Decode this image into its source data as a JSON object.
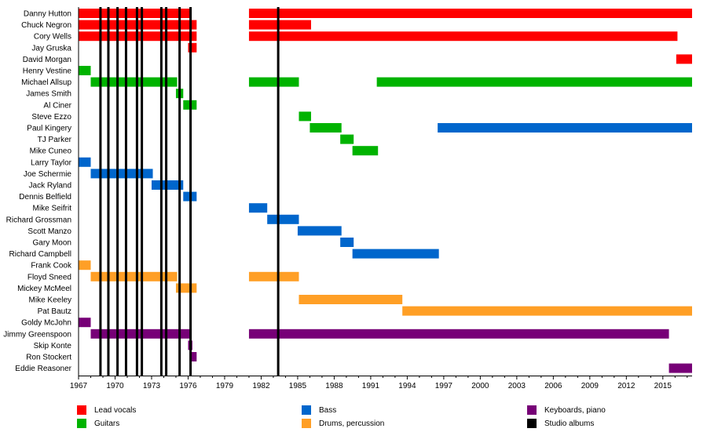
{
  "chart_data": {
    "type": "timeline",
    "title": "",
    "xlabel": "",
    "ylabel": "",
    "xlim": [
      1967,
      2017.4
    ],
    "x_ticks": [
      1967,
      1970,
      1973,
      1976,
      1979,
      1982,
      1985,
      1988,
      1991,
      1994,
      1997,
      2000,
      2003,
      2006,
      2009,
      2012,
      2015
    ],
    "roles": {
      "vocals": {
        "label": "Lead vocals",
        "color": "#ff0000"
      },
      "guitars": {
        "label": "Guitars",
        "color": "#00b300"
      },
      "bass": {
        "label": "Bass",
        "color": "#0066cc"
      },
      "drums": {
        "label": "Drums, percussion",
        "color": "#ff9f26"
      },
      "keyboards": {
        "label": "Keyboards, piano",
        "color": "#770077"
      },
      "albums": {
        "label": "Studio albums",
        "color": "#000000"
      }
    },
    "members": [
      {
        "name": "Danny Hutton",
        "role": "vocals",
        "periods": [
          [
            1967,
            1976.2
          ],
          [
            1981,
            2017.4
          ]
        ]
      },
      {
        "name": "Chuck Negron",
        "role": "vocals",
        "periods": [
          [
            1967,
            1976.7
          ],
          [
            1981,
            1986.1
          ]
        ]
      },
      {
        "name": "Cory Wells",
        "role": "vocals",
        "periods": [
          [
            1967,
            1976.7
          ],
          [
            1981,
            2016.2
          ]
        ]
      },
      {
        "name": "Jay Gruska",
        "role": "vocals",
        "periods": [
          [
            1976.0,
            1976.7
          ]
        ]
      },
      {
        "name": "David Morgan",
        "role": "vocals",
        "periods": [
          [
            2016.1,
            2017.4
          ]
        ]
      },
      {
        "name": "Henry Vestine",
        "role": "guitars",
        "periods": [
          [
            1967,
            1968.0
          ]
        ]
      },
      {
        "name": "Michael Allsup",
        "role": "guitars",
        "periods": [
          [
            1968.0,
            1975.1
          ],
          [
            1981,
            1985.1
          ],
          [
            1991.5,
            2017.4
          ]
        ]
      },
      {
        "name": "James Smith",
        "role": "guitars",
        "periods": [
          [
            1975.0,
            1975.6
          ]
        ]
      },
      {
        "name": "Al Ciner",
        "role": "guitars",
        "periods": [
          [
            1975.6,
            1976.7
          ]
        ]
      },
      {
        "name": "Steve Ezzo",
        "role": "guitars",
        "periods": [
          [
            1985.1,
            1986.1
          ]
        ]
      },
      {
        "name": "Paul Kingery",
        "role": "guitars",
        "periods": [
          [
            1986.0,
            1988.6
          ]
        ]
      },
      {
        "name": "TJ Parker",
        "role": "guitars",
        "periods": [
          [
            1988.5,
            1989.6
          ]
        ]
      },
      {
        "name": "Mike Cuneo",
        "role": "guitars",
        "periods": [
          [
            1989.5,
            1991.6
          ]
        ]
      },
      {
        "name": "Larry Taylor",
        "role": "bass",
        "periods": [
          [
            1967,
            1968.0
          ]
        ]
      },
      {
        "name": "Joe Schermie",
        "role": "bass",
        "periods": [
          [
            1968.0,
            1973.1
          ]
        ]
      },
      {
        "name": "Jack Ryland",
        "role": "bass",
        "periods": [
          [
            1973.0,
            1975.6
          ]
        ]
      },
      {
        "name": "Dennis Belfield",
        "role": "bass",
        "periods": [
          [
            1975.6,
            1976.7
          ]
        ]
      },
      {
        "name": "Mike Seifrit",
        "role": "bass",
        "periods": [
          [
            1981,
            1982.5
          ]
        ]
      },
      {
        "name": "Richard Grossman",
        "role": "bass",
        "periods": [
          [
            1982.5,
            1985.1
          ]
        ]
      },
      {
        "name": "Scott Manzo",
        "role": "bass",
        "periods": [
          [
            1985.0,
            1988.6
          ]
        ]
      },
      {
        "name": "Gary Moon",
        "role": "bass",
        "periods": [
          [
            1988.5,
            1989.6
          ]
        ]
      },
      {
        "name": "Richard Campbell",
        "role": "bass",
        "periods": [
          [
            1989.5,
            1996.6
          ]
        ]
      },
      {
        "name": "Frank Cook",
        "role": "drums",
        "periods": [
          [
            1967,
            1968.0
          ]
        ]
      },
      {
        "name": "Floyd Sneed",
        "role": "drums",
        "periods": [
          [
            1968.0,
            1975.1
          ],
          [
            1981,
            1985.1
          ]
        ]
      },
      {
        "name": "Mickey McMeel",
        "role": "drums",
        "periods": [
          [
            1975.0,
            1976.7
          ]
        ]
      },
      {
        "name": "Mike Keeley",
        "role": "drums",
        "periods": [
          [
            1985.1,
            1993.6
          ]
        ]
      },
      {
        "name": "Pat Bautz",
        "role": "drums",
        "periods": [
          [
            1993.6,
            2017.4
          ]
        ]
      },
      {
        "name": "Goldy McJohn",
        "role": "keyboards",
        "periods": [
          [
            1967,
            1968.0
          ]
        ]
      },
      {
        "name": "Jimmy Greenspoon",
        "role": "keyboards",
        "periods": [
          [
            1968.0,
            1976.2
          ],
          [
            1981,
            2015.5
          ]
        ]
      },
      {
        "name": "Skip Konte",
        "role": "keyboards",
        "periods": [
          [
            1976.0,
            1976.35
          ]
        ]
      },
      {
        "name": "Ron Stockert",
        "role": "keyboards",
        "periods": [
          [
            1976.2,
            1976.7
          ]
        ]
      },
      {
        "name": "Eddie Reasoner",
        "role": "keyboards",
        "periods": [
          [
            2015.5,
            2017.4
          ]
        ]
      }
    ],
    "extra_periods": [
      {
        "name": "Paul Kingery",
        "role": "bass",
        "periods": [
          [
            1996.5,
            2017.4
          ]
        ]
      }
    ],
    "studio_albums": [
      1968.8,
      1969.45,
      1970.2,
      1970.9,
      1971.8,
      1972.2,
      1973.8,
      1974.2,
      1975.3,
      1976.2,
      1983.4
    ],
    "legend_order": [
      "vocals",
      "guitars",
      "bass",
      "drums",
      "keyboards",
      "albums"
    ],
    "legend_placement": "bottom"
  }
}
